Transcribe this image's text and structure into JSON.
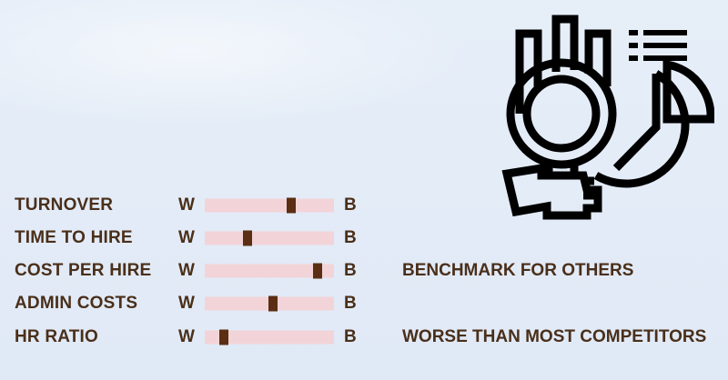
{
  "rows": [
    {
      "label": "TURNOVER",
      "worst": "W",
      "best": "B",
      "position": 0.67,
      "note": ""
    },
    {
      "label": "TIME TO HIRE",
      "worst": "W",
      "best": "B",
      "position": 0.33,
      "note": ""
    },
    {
      "label": "COST PER HIRE",
      "worst": "W",
      "best": "B",
      "position": 0.87,
      "note": "BENCHMARK FOR OTHERS"
    },
    {
      "label": "ADMIN COSTS",
      "worst": "W",
      "best": "B",
      "position": 0.53,
      "note": ""
    },
    {
      "label": "HR RATIO",
      "worst": "W",
      "best": "B",
      "position": 0.15,
      "note": "WORSE THAN MOST COMPETITORS"
    }
  ],
  "colors": {
    "text": "#4a2f1a",
    "track": "#f2d4d8",
    "marker": "#5a2e12",
    "background": "#e3ecf7",
    "icon": "#000000"
  },
  "illustration": {
    "icon": "magnifier-chart-analysis-icon"
  }
}
